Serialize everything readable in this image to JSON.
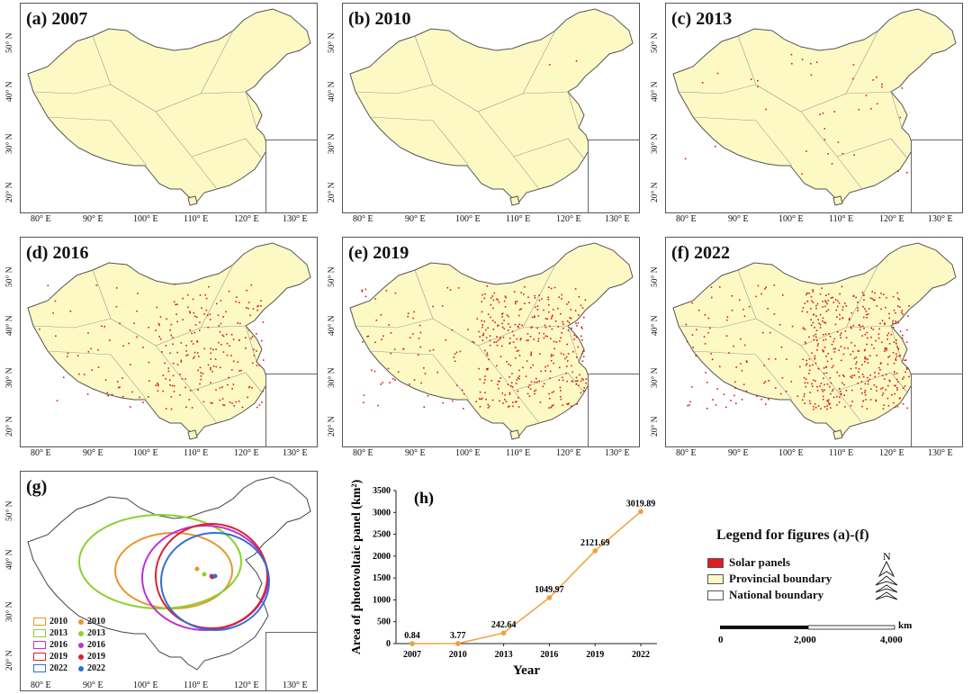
{
  "panels": [
    {
      "label": "(a) 2007",
      "dots": 0
    },
    {
      "label": "(b) 2010",
      "dots": 2
    },
    {
      "label": "(c) 2013",
      "dots": 40
    },
    {
      "label": "(d) 2016",
      "dots": 260
    },
    {
      "label": "(e) 2019",
      "dots": 420
    },
    {
      "label": "(f) 2022",
      "dots": 520
    }
  ],
  "lat_labels": [
    "50° N",
    "40° N",
    "30° N",
    "20° N"
  ],
  "lon_labels": [
    "80° E",
    "90° E",
    "100° E",
    "110° E",
    "120° E",
    "130° E"
  ],
  "panel_g": {
    "label": "(g)",
    "legend": [
      {
        "year": "2010",
        "color": "#e8962b"
      },
      {
        "year": "2013",
        "color": "#8bd12f"
      },
      {
        "year": "2016",
        "color": "#c22fd6"
      },
      {
        "year": "2019",
        "color": "#d9232f"
      },
      {
        "year": "2022",
        "color": "#2f6fd6"
      }
    ]
  },
  "chart_data": {
    "type": "line",
    "label": "(h)",
    "categories": [
      "2007",
      "2010",
      "2013",
      "2016",
      "2019",
      "2022"
    ],
    "values": [
      0.84,
      3.77,
      242.64,
      1049.97,
      2121.69,
      3019.89
    ],
    "data_labels": [
      "0.84",
      "3.77",
      "242.64",
      "1049.97",
      "2121.69",
      "3019.89"
    ],
    "xlabel": "Year",
    "ylabel": "Area of photovoltaic panel (km²)",
    "ylim": [
      0,
      3500
    ],
    "yticks": [
      "0",
      "500",
      "1000",
      "1500",
      "2000",
      "2500",
      "3000",
      "3500"
    ],
    "color": "#f0a040"
  },
  "legend": {
    "title": "Legend for figures (a)-(f)",
    "items": [
      {
        "label": "Solar panels",
        "color": "#e21c1c"
      },
      {
        "label": "Provincial boundary",
        "color": "#fdf9c4"
      },
      {
        "label": "National boundary",
        "color": "#ffffff"
      }
    ],
    "north": "N",
    "scale": [
      "0",
      "2,000",
      "4,000"
    ],
    "scale_unit": "km"
  },
  "colors": {
    "land": "#fdf9c4",
    "border": "#555555",
    "dot": "#d91a1a"
  }
}
